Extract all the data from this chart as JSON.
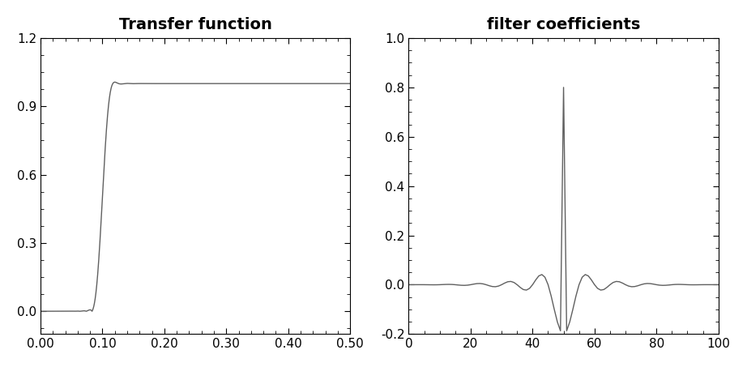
{
  "title1": "Transfer function",
  "title2": "filter coefficients",
  "tf_xlim": [
    0.0,
    0.5
  ],
  "tf_ylim": [
    -0.1,
    1.2
  ],
  "tf_yticks": [
    0.0,
    0.3,
    0.6,
    0.9,
    1.2
  ],
  "tf_xticks": [
    0.0,
    0.1,
    0.2,
    0.3,
    0.4,
    0.5
  ],
  "fc_xlim": [
    0,
    100
  ],
  "fc_ylim": [
    -0.2,
    1.0
  ],
  "fc_yticks": [
    -0.2,
    0.0,
    0.2,
    0.4,
    0.6,
    0.8,
    1.0
  ],
  "fc_xticks": [
    0,
    20,
    40,
    60,
    80,
    100
  ],
  "line_color": "#606060",
  "bg_color": "#ffffff",
  "cutoff_freq": 0.1,
  "num_taps": 101,
  "title_fontsize": 14,
  "tick_fontsize": 11
}
